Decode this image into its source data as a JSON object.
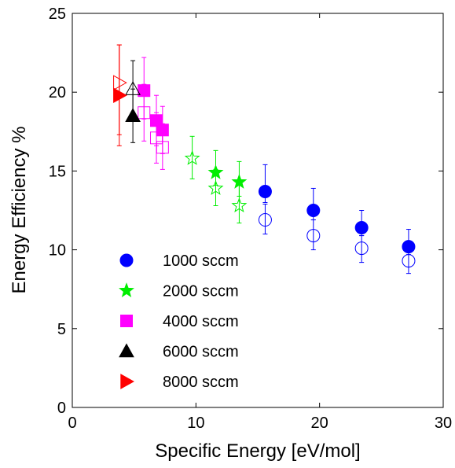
{
  "chart_data": {
    "type": "scatter",
    "xlabel": "Specific Energy [eV/mol]",
    "ylabel": "Energy Efficiency %",
    "xlim": [
      0,
      30
    ],
    "ylim": [
      0,
      25
    ],
    "xticks": [
      0,
      10,
      20,
      30
    ],
    "yticks": [
      0,
      5,
      10,
      15,
      20,
      25
    ],
    "grid": false,
    "legend_position": "lower-left",
    "series": [
      {
        "name": "1000 sccm",
        "color": "#0000ff",
        "marker": "circle",
        "filled": [
          {
            "x": 15.6,
            "y": 13.7,
            "err_lo": 0.7,
            "err_hi": 1.7
          },
          {
            "x": 19.5,
            "y": 12.5,
            "err_lo": 0.6,
            "err_hi": 1.4
          },
          {
            "x": 23.4,
            "y": 11.4,
            "err_lo": 0.5,
            "err_hi": 1.1
          },
          {
            "x": 27.2,
            "y": 10.2,
            "err_lo": 0.5,
            "err_hi": 1.1
          }
        ],
        "open": [
          {
            "x": 15.6,
            "y": 11.9,
            "err_lo": 0.9,
            "err_hi": 1.0
          },
          {
            "x": 19.5,
            "y": 10.9,
            "err_lo": 0.9,
            "err_hi": 1.0
          },
          {
            "x": 23.4,
            "y": 10.1,
            "err_lo": 0.9,
            "err_hi": 0.8
          },
          {
            "x": 27.2,
            "y": 9.3,
            "err_lo": 0.8,
            "err_hi": 0.7
          }
        ]
      },
      {
        "name": "2000 sccm",
        "color": "#00ee00",
        "marker": "star",
        "filled": [
          {
            "x": 11.6,
            "y": 14.9,
            "err_lo": 0.8,
            "err_hi": 1.4
          },
          {
            "x": 13.5,
            "y": 14.3,
            "err_lo": 0.9,
            "err_hi": 1.3
          }
        ],
        "open": [
          {
            "x": 9.7,
            "y": 15.8,
            "err_lo": 1.3,
            "err_hi": 1.4
          },
          {
            "x": 11.6,
            "y": 13.9,
            "err_lo": 1.1,
            "err_hi": 1.2
          },
          {
            "x": 13.5,
            "y": 12.8,
            "err_lo": 1.1,
            "err_hi": 1.3
          }
        ]
      },
      {
        "name": "4000 sccm",
        "color": "#ff00ff",
        "marker": "square",
        "filled": [
          {
            "x": 5.8,
            "y": 20.1,
            "err_lo": 1.8,
            "err_hi": 2.1
          },
          {
            "x": 6.8,
            "y": 18.2,
            "err_lo": 1.6,
            "err_hi": 1.6
          },
          {
            "x": 7.3,
            "y": 17.6,
            "err_lo": 1.5,
            "err_hi": 1.5
          }
        ],
        "open": [
          {
            "x": 5.8,
            "y": 18.7,
            "err_lo": 1.8,
            "err_hi": 1.8
          },
          {
            "x": 6.8,
            "y": 17.1,
            "err_lo": 1.6,
            "err_hi": 1.6
          },
          {
            "x": 7.3,
            "y": 16.5,
            "err_lo": 1.4,
            "err_hi": 1.5
          }
        ]
      },
      {
        "name": "6000 sccm",
        "color": "#000000",
        "marker": "triangle-up",
        "filled": [
          {
            "x": 4.9,
            "y": 18.5,
            "err_lo": 1.7,
            "err_hi": 1.7
          }
        ],
        "open": [
          {
            "x": 4.9,
            "y": 20.2,
            "err_lo": 1.8,
            "err_hi": 1.8
          }
        ]
      },
      {
        "name": "8000 sccm",
        "color": "#ff0000",
        "marker": "triangle-right",
        "filled": [
          {
            "x": 3.8,
            "y": 19.8,
            "err_lo": 3.2,
            "err_hi": 3.2
          }
        ],
        "open": [
          {
            "x": 3.8,
            "y": 20.6,
            "err_lo": 3.3,
            "err_hi": 2.4
          }
        ]
      }
    ]
  }
}
